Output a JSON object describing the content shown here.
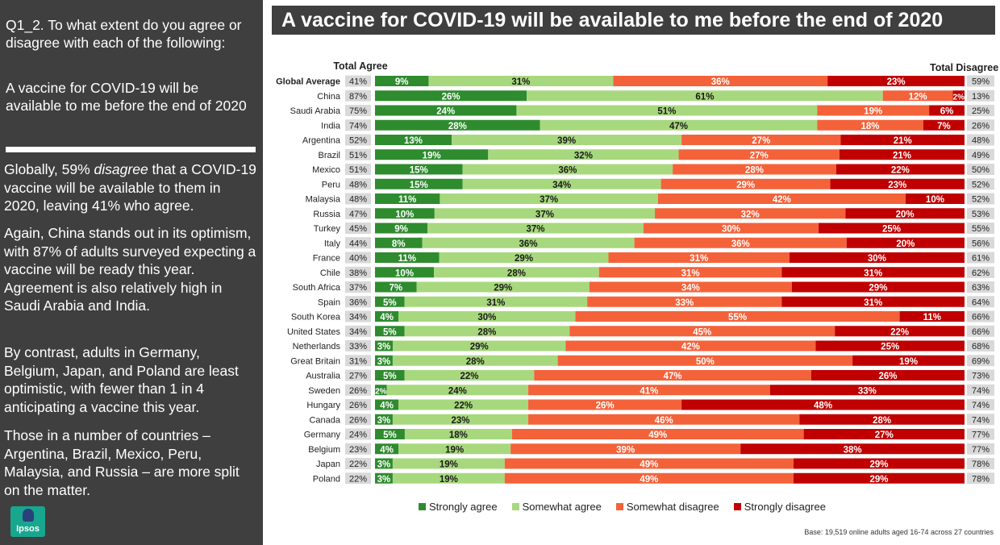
{
  "sidebar": {
    "question": "Q1_2. To what extent do you agree or disagree with each of the following:",
    "statement": "A vaccine for COVID-19 will be available to me before the end of 2020",
    "para1_start": "Globally, 59% ",
    "para1_em": "disagree",
    "para1_end": " that a COVID-19 vaccine will be available to them in 2020, leaving 41% who agree.",
    "para2": "Again, China stands out in its optimism, with 87% of adults surveyed expecting a vaccine will be ready this year. Agreement is also relatively high in Saudi Arabia and India.",
    "para3": "By contrast, adults in Germany, Belgium, Japan, and Poland are least optimistic, with fewer than 1 in 4 anticipating a vaccine this year.",
    "para4": "Those in a number of countries – Argentina, Brazil, Mexico, Peru, Malaysia, and Russia – are more split on the matter.",
    "logo_text": "Ipsos"
  },
  "footer": {
    "base": "Base: 19,519 online adults aged 16-74 across 27 countries"
  },
  "colors": {
    "strongly_agree": "#2e8b2e",
    "somewhat_agree": "#a8d87e",
    "somewhat_disagree": "#f4623a",
    "strongly_disagree": "#c00000",
    "total_box": "#d9d9d9"
  },
  "chart_data": {
    "type": "bar",
    "orientation": "horizontal-stacked-100",
    "title": "A vaccine for COVID-19 will be available to me before the end of 2020",
    "left_header": "Total Agree",
    "right_header": "Total Disagree",
    "series_names": [
      "Strongly agree",
      "Somewhat agree",
      "Somewhat disagree",
      "Strongly disagree"
    ],
    "categories": [
      "Global Average",
      "China",
      "Saudi Arabia",
      "India",
      "Argentina",
      "Brazil",
      "Mexico",
      "Peru",
      "Malaysia",
      "Russia",
      "Turkey",
      "Italy",
      "France",
      "Chile",
      "South Africa",
      "Spain",
      "South Korea",
      "United States",
      "Netherlands",
      "Great Britain",
      "Australia",
      "Sweden",
      "Hungary",
      "Canada",
      "Germany",
      "Belgium",
      "Japan",
      "Poland"
    ],
    "strongly_agree": [
      9,
      26,
      24,
      28,
      13,
      19,
      15,
      15,
      11,
      10,
      9,
      8,
      11,
      10,
      7,
      5,
      4,
      5,
      3,
      3,
      5,
      2,
      4,
      3,
      5,
      4,
      3,
      3
    ],
    "somewhat_agree": [
      31,
      61,
      51,
      47,
      39,
      32,
      36,
      34,
      37,
      37,
      37,
      36,
      29,
      28,
      29,
      31,
      30,
      28,
      29,
      28,
      22,
      24,
      22,
      23,
      18,
      19,
      19,
      19
    ],
    "somewhat_disagree": [
      36,
      12,
      19,
      18,
      27,
      27,
      28,
      29,
      42,
      32,
      30,
      36,
      31,
      31,
      34,
      33,
      55,
      45,
      42,
      50,
      47,
      41,
      26,
      46,
      49,
      39,
      49,
      49
    ],
    "strongly_disagree": [
      23,
      2,
      6,
      7,
      21,
      21,
      22,
      23,
      10,
      20,
      25,
      20,
      30,
      31,
      29,
      31,
      11,
      22,
      25,
      19,
      26,
      33,
      48,
      28,
      27,
      38,
      29,
      29
    ],
    "total_agree": [
      41,
      87,
      75,
      74,
      52,
      51,
      51,
      48,
      48,
      47,
      45,
      44,
      40,
      38,
      37,
      36,
      34,
      34,
      33,
      31,
      27,
      26,
      26,
      26,
      24,
      23,
      22,
      22
    ],
    "total_disagree": [
      59,
      13,
      25,
      26,
      48,
      49,
      50,
      52,
      52,
      53,
      55,
      56,
      61,
      62,
      63,
      64,
      66,
      66,
      68,
      69,
      73,
      74,
      74,
      74,
      77,
      77,
      78,
      78
    ],
    "highlight_category": "Global Average"
  }
}
